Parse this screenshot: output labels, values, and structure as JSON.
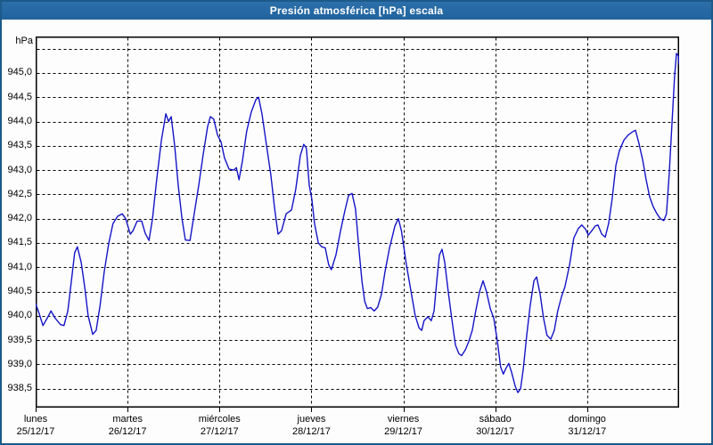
{
  "window": {
    "title": "Presión atmosférica [hPa] escala",
    "title_bar_color": "#2468a4",
    "border_color": "#1c5a8a"
  },
  "chart_data": {
    "type": "line",
    "title": "Presión atmosférica [hPa] escala",
    "ylabel": "hPa",
    "line_color": "#1414c8",
    "grid": "dashed",
    "legend": "none",
    "x_axis": {
      "hours_total": 168,
      "days": [
        {
          "name": "lunes",
          "date": "25/12/17"
        },
        {
          "name": "martes",
          "date": "26/12/17"
        },
        {
          "name": "miércoles",
          "date": "27/12/17"
        },
        {
          "name": "jueves",
          "date": "28/12/17"
        },
        {
          "name": "viernes",
          "date": "29/12/17"
        },
        {
          "name": "sábado",
          "date": "30/12/17"
        },
        {
          "name": "domingo",
          "date": "31/12/17"
        }
      ]
    },
    "y_axis": {
      "unit": "hPa",
      "min": 938.11,
      "max": 945.75,
      "gridline_values": [
        945.5,
        945.0,
        944.5,
        944.0,
        943.5,
        943.0,
        942.5,
        942.0,
        941.5,
        941.0,
        940.5,
        940.0,
        939.5,
        939.0,
        938.5
      ],
      "ticks": [
        {
          "label": "945,0",
          "value": 945.0
        },
        {
          "label": "944,5",
          "value": 944.5
        },
        {
          "label": "944,0",
          "value": 944.0
        },
        {
          "label": "943,5",
          "value": 943.5
        },
        {
          "label": "943,0",
          "value": 943.0
        },
        {
          "label": "942,5",
          "value": 942.5
        },
        {
          "label": "942,0",
          "value": 942.0
        },
        {
          "label": "941,5",
          "value": 941.5
        },
        {
          "label": "941,0",
          "value": 941.0
        },
        {
          "label": "940,5",
          "value": 940.5
        },
        {
          "label": "940,0",
          "value": 940.0
        },
        {
          "label": "939,5",
          "value": 939.5
        },
        {
          "label": "939,0",
          "value": 939.0
        },
        {
          "label": "938,5",
          "value": 938.5
        }
      ]
    },
    "series": [
      {
        "name": "Presión atmosférica",
        "points": [
          [
            0,
            940.25
          ],
          [
            0.9,
            940.05
          ],
          [
            1.9,
            939.8
          ],
          [
            3,
            939.95
          ],
          [
            4,
            940.1
          ],
          [
            5.1,
            939.95
          ],
          [
            6.5,
            939.82
          ],
          [
            7.4,
            939.8
          ],
          [
            8.4,
            940.1
          ],
          [
            9.3,
            940.7
          ],
          [
            10.2,
            941.3
          ],
          [
            10.9,
            941.42
          ],
          [
            11.9,
            941.1
          ],
          [
            12.8,
            940.6
          ],
          [
            13.7,
            940
          ],
          [
            14.9,
            939.62
          ],
          [
            15.8,
            939.7
          ],
          [
            16.8,
            940.2
          ],
          [
            17.9,
            940.9
          ],
          [
            19.1,
            941.5
          ],
          [
            20.2,
            941.9
          ],
          [
            21.4,
            942.05
          ],
          [
            22.6,
            942.1
          ],
          [
            23.5,
            942
          ],
          [
            24.7,
            941.68
          ],
          [
            25.4,
            941.75
          ],
          [
            26.5,
            941.95
          ],
          [
            27.7,
            941.95
          ],
          [
            28.6,
            941.7
          ],
          [
            29.6,
            941.55
          ],
          [
            30.5,
            942
          ],
          [
            31.6,
            942.8
          ],
          [
            32.8,
            943.6
          ],
          [
            34,
            944.16
          ],
          [
            34.7,
            944
          ],
          [
            35.4,
            944.1
          ],
          [
            36.3,
            943.5
          ],
          [
            37.2,
            942.7
          ],
          [
            38.2,
            942
          ],
          [
            39.1,
            941.56
          ],
          [
            40.3,
            941.55
          ],
          [
            41.4,
            942.1
          ],
          [
            42.6,
            942.7
          ],
          [
            43.7,
            943.3
          ],
          [
            44.9,
            943.9
          ],
          [
            45.6,
            944.1
          ],
          [
            46.5,
            944.05
          ],
          [
            47.5,
            943.72
          ],
          [
            48.4,
            943.58
          ],
          [
            49.3,
            943.25
          ],
          [
            50.5,
            943.02
          ],
          [
            51.7,
            943
          ],
          [
            52.4,
            943.05
          ],
          [
            53.1,
            942.8
          ],
          [
            54,
            943.2
          ],
          [
            55.1,
            943.8
          ],
          [
            56.3,
            944.2
          ],
          [
            57.5,
            944.45
          ],
          [
            58.2,
            944.5
          ],
          [
            59.1,
            944.15
          ],
          [
            60.3,
            943.5
          ],
          [
            61.4,
            942.9
          ],
          [
            62.4,
            942.2
          ],
          [
            63.3,
            941.68
          ],
          [
            64.2,
            941.75
          ],
          [
            65.4,
            942.1
          ],
          [
            66.8,
            942.18
          ],
          [
            67.9,
            942.6
          ],
          [
            69.1,
            943.3
          ],
          [
            70,
            943.53
          ],
          [
            70.7,
            943.45
          ],
          [
            71.4,
            942.7
          ],
          [
            72.1,
            942.4
          ],
          [
            72.8,
            941.9
          ],
          [
            73.8,
            941.5
          ],
          [
            74.7,
            941.42
          ],
          [
            75.6,
            941.4
          ],
          [
            76.5,
            941.05
          ],
          [
            77.2,
            940.95
          ],
          [
            78.4,
            941.25
          ],
          [
            79.6,
            941.75
          ],
          [
            80.7,
            942.15
          ],
          [
            81.7,
            942.48
          ],
          [
            82.6,
            942.52
          ],
          [
            83.5,
            942.2
          ],
          [
            84.5,
            941.3
          ],
          [
            85.2,
            940.7
          ],
          [
            85.9,
            940.3
          ],
          [
            86.6,
            940.15
          ],
          [
            87.5,
            940.17
          ],
          [
            88.4,
            940.1
          ],
          [
            89.3,
            940.18
          ],
          [
            90.3,
            940.45
          ],
          [
            91.2,
            940.9
          ],
          [
            92.4,
            941.4
          ],
          [
            93.8,
            941.85
          ],
          [
            94.7,
            942
          ],
          [
            95.5,
            941.75
          ],
          [
            96.8,
            941.05
          ],
          [
            98,
            940.5
          ],
          [
            99.1,
            940
          ],
          [
            100.1,
            939.75
          ],
          [
            100.8,
            939.7
          ],
          [
            101.4,
            939.9
          ],
          [
            102.4,
            939.98
          ],
          [
            103.3,
            939.9
          ],
          [
            104,
            940.1
          ],
          [
            104.7,
            940.7
          ],
          [
            105.4,
            941.25
          ],
          [
            106.1,
            941.37
          ],
          [
            106.8,
            941.1
          ],
          [
            107.7,
            940.5
          ],
          [
            108.7,
            939.9
          ],
          [
            109.6,
            939.4
          ],
          [
            110.5,
            939.22
          ],
          [
            111.2,
            939.18
          ],
          [
            112.2,
            939.3
          ],
          [
            113.1,
            939.48
          ],
          [
            114,
            939.7
          ],
          [
            114.9,
            940.1
          ],
          [
            115.9,
            940.5
          ],
          [
            116.8,
            940.72
          ],
          [
            117.7,
            940.5
          ],
          [
            118.7,
            940.15
          ],
          [
            119.6,
            939.95
          ],
          [
            120.5,
            939.5
          ],
          [
            121.4,
            938.95
          ],
          [
            122.1,
            938.8
          ],
          [
            122.8,
            938.92
          ],
          [
            123.5,
            939.02
          ],
          [
            124.2,
            938.85
          ],
          [
            125.2,
            938.55
          ],
          [
            125.9,
            938.42
          ],
          [
            126.6,
            938.5
          ],
          [
            127.3,
            938.9
          ],
          [
            128.2,
            939.6
          ],
          [
            129.1,
            940.2
          ],
          [
            130.1,
            940.72
          ],
          [
            130.8,
            940.8
          ],
          [
            131.7,
            940.45
          ],
          [
            132.6,
            939.95
          ],
          [
            133.5,
            939.6
          ],
          [
            134.5,
            939.52
          ],
          [
            135.4,
            939.7
          ],
          [
            136.3,
            940.1
          ],
          [
            137.3,
            940.4
          ],
          [
            138.2,
            940.6
          ],
          [
            139.4,
            941.05
          ],
          [
            140.5,
            941.6
          ],
          [
            141.7,
            941.8
          ],
          [
            142.6,
            941.87
          ],
          [
            143.6,
            941.78
          ],
          [
            144.3,
            941.66
          ],
          [
            145.2,
            941.75
          ],
          [
            146.1,
            941.85
          ],
          [
            146.8,
            941.87
          ],
          [
            147.8,
            941.68
          ],
          [
            148.7,
            941.62
          ],
          [
            149.6,
            941.9
          ],
          [
            150.5,
            942.4
          ],
          [
            151.5,
            943.1
          ],
          [
            152.4,
            943.4
          ],
          [
            153.6,
            943.62
          ],
          [
            154.7,
            943.72
          ],
          [
            155.7,
            943.78
          ],
          [
            156.6,
            943.82
          ],
          [
            157.5,
            943.55
          ],
          [
            158.5,
            943.2
          ],
          [
            159.4,
            942.8
          ],
          [
            160.3,
            942.45
          ],
          [
            161.2,
            942.25
          ],
          [
            162.2,
            942.1
          ],
          [
            163.1,
            942
          ],
          [
            164,
            941.96
          ],
          [
            164.7,
            942.1
          ],
          [
            165.4,
            942.9
          ],
          [
            166.1,
            943.9
          ],
          [
            166.8,
            944.9
          ],
          [
            167.3,
            945.4
          ],
          [
            167.8,
            945.35
          ],
          [
            168,
            945.18
          ]
        ]
      }
    ]
  }
}
